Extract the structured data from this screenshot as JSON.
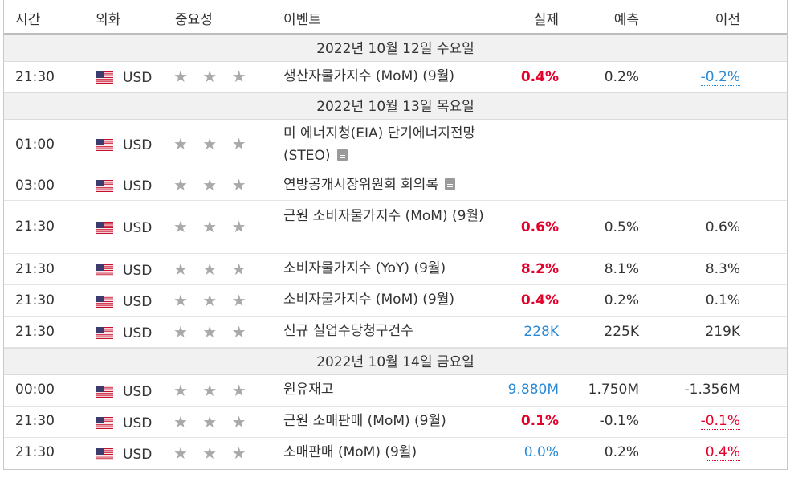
{
  "headers": {
    "time": "시간",
    "currency": "외화",
    "importance": "중요성",
    "event": "이벤트",
    "actual": "실제",
    "forecast": "예측",
    "previous": "이전"
  },
  "dates": [
    "2022년 10월 12일 수요일",
    "2022년 10월 13일 목요일",
    "2022년 10월 14일 금요일"
  ],
  "rows": [
    {
      "time": "21:30",
      "currency": "USD",
      "stars": "★ ★ ★",
      "event": "생산자물가지수 (MoM) (9월)",
      "actual": "0.4%",
      "forecast": "0.2%",
      "previous": "-0.2%"
    },
    {
      "time": "01:00",
      "currency": "USD",
      "stars": "★ ★ ★",
      "event": "미 에너지청(EIA) 단기에너지전망(STEO)",
      "actual": "",
      "forecast": "",
      "previous": ""
    },
    {
      "time": "03:00",
      "currency": "USD",
      "stars": "★ ★ ★",
      "event": "연방공개시장위원회 회의록",
      "actual": "",
      "forecast": "",
      "previous": ""
    },
    {
      "time": "21:30",
      "currency": "USD",
      "stars": "★ ★ ★",
      "event": "근원 소비자물가지수 (MoM) (9월)",
      "actual": "0.6%",
      "forecast": "0.5%",
      "previous": "0.6%"
    },
    {
      "time": "21:30",
      "currency": "USD",
      "stars": "★ ★ ★",
      "event": "소비자물가지수 (YoY) (9월)",
      "actual": "8.2%",
      "forecast": "8.1%",
      "previous": "8.3%"
    },
    {
      "time": "21:30",
      "currency": "USD",
      "stars": "★ ★ ★",
      "event": "소비자물가지수 (MoM) (9월)",
      "actual": "0.4%",
      "forecast": "0.2%",
      "previous": "0.1%"
    },
    {
      "time": "21:30",
      "currency": "USD",
      "stars": "★ ★ ★",
      "event": "신규 실업수당청구건수",
      "actual": "228K",
      "forecast": "225K",
      "previous": "219K"
    },
    {
      "time": "00:00",
      "currency": "USD",
      "stars": "★ ★ ★",
      "event": "원유재고",
      "actual": "9.880M",
      "forecast": "1.750M",
      "previous": "-1.356M"
    },
    {
      "time": "21:30",
      "currency": "USD",
      "stars": "★ ★ ★",
      "event": "근원 소매판매 (MoM) (9월)",
      "actual": "0.1%",
      "forecast": "-0.1%",
      "previous": "-0.1%"
    },
    {
      "time": "21:30",
      "currency": "USD",
      "stars": "★ ★ ★",
      "event": "소매판매 (MoM) (9월)",
      "actual": "0.0%",
      "forecast": "0.2%",
      "previous": "0.4%"
    }
  ],
  "colors": {
    "negative": "#e4002b",
    "positive": "#2a8ad6",
    "stars": "#a9a9a9",
    "date_row_bg": "#f1f1f1"
  }
}
